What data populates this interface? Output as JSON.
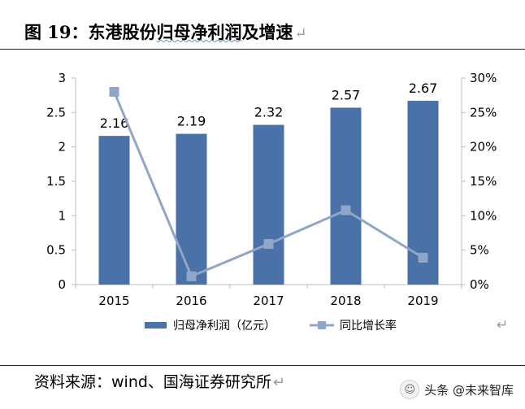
{
  "figure": {
    "number_label": "图 19：",
    "title_plain": "东港股份",
    "title_underlined": "归母净利润",
    "title_rest": "及增速"
  },
  "source": "资料来源：wind、国海证券研究所",
  "watermark": {
    "text": "头条 @未来智库",
    "icon": "smiley-icon"
  },
  "chart_data": {
    "type": "bar",
    "categories": [
      "2015",
      "2016",
      "2017",
      "2018",
      "2019"
    ],
    "series": [
      {
        "name": "归母净利润（亿元）",
        "type": "bar",
        "axis": "left",
        "values": [
          2.16,
          2.19,
          2.32,
          2.57,
          2.67
        ],
        "color": "#4a72a8"
      },
      {
        "name": "同比增长率",
        "type": "line",
        "axis": "right",
        "values": [
          28.0,
          1.2,
          5.9,
          10.8,
          3.9
        ],
        "color": "#8fa6c8"
      }
    ],
    "data_labels": [
      "2.16",
      "2.19",
      "2.32",
      "2.57",
      "2.67"
    ],
    "y_left": {
      "min": 0,
      "max": 3,
      "ticks": [
        "0",
        "0.5",
        "1",
        "1.5",
        "2",
        "2.5",
        "3"
      ]
    },
    "y_right": {
      "min": 0,
      "max": 30,
      "ticks": [
        "0%",
        "5%",
        "10%",
        "15%",
        "20%",
        "25%",
        "30%"
      ]
    },
    "legend_position": "bottom",
    "grid": false
  }
}
